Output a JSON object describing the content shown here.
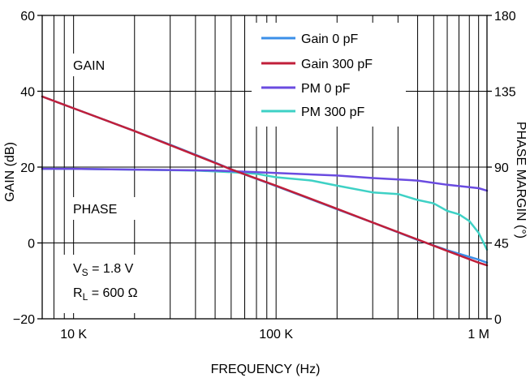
{
  "chart_data": {
    "type": "line",
    "x_scale": "log",
    "xlim": [
      7000,
      1100000
    ],
    "ylim_left": [
      -20,
      60
    ],
    "ylim_right": [
      0,
      180
    ],
    "xlabel": "FREQUENCY (Hz)",
    "ylabel_left": "GAIN (dB)",
    "ylabel_right": "PHASE MARGIN (°)",
    "x_ticks": [
      {
        "value": 10000,
        "label": "10 K"
      },
      {
        "value": 100000,
        "label": "100 K"
      },
      {
        "value": 1000000,
        "label": "1 M"
      }
    ],
    "y_ticks_left": [
      -20,
      0,
      20,
      40,
      60
    ],
    "y_ticks_left_labels": [
      "−20",
      "0",
      "20",
      "40",
      "60"
    ],
    "y_ticks_right": [
      0,
      45,
      90,
      135,
      180
    ],
    "grid": "vertical log minor lines, horizontal at left ticks",
    "legend_position": "top-right",
    "annotations": {
      "gain": "GAIN",
      "phase": "PHASE",
      "vs_main": "V",
      "vs_sub": "S",
      "vs_rest": " = 1.8 V",
      "rl_main": "R",
      "rl_sub": "L",
      "rl_rest": " = 600 Ω"
    },
    "series": [
      {
        "name": "Gain 0 pF",
        "axis": "left",
        "color": "#3b8fe8",
        "x": [
          7000,
          10000,
          20000,
          30000,
          50000,
          60000,
          100000,
          200000,
          300000,
          500000,
          700000,
          1000000,
          1100000
        ],
        "y": [
          38.6,
          35.5,
          29.5,
          25.9,
          21.2,
          19.4,
          15.0,
          8.9,
          5.4,
          0.8,
          -1.9,
          -4.4,
          -5.2
        ]
      },
      {
        "name": "Gain 300 pF",
        "axis": "left",
        "color": "#c01f3a",
        "x": [
          7000,
          10000,
          20000,
          30000,
          50000,
          60000,
          100000,
          200000,
          300000,
          500000,
          700000,
          1000000,
          1100000
        ],
        "y": [
          38.6,
          35.5,
          29.5,
          25.8,
          21.1,
          19.4,
          15.1,
          9.0,
          5.4,
          0.9,
          -2.1,
          -5.2,
          -5.9
        ]
      },
      {
        "name": "PM 0 pF",
        "axis": "right",
        "color": "#6a4be0",
        "x": [
          7000,
          10000,
          20000,
          50000,
          100000,
          200000,
          300000,
          500000,
          700000,
          1000000,
          1100000
        ],
        "y": [
          89,
          89,
          88.5,
          88,
          86.5,
          85,
          83.5,
          82,
          79.5,
          77.5,
          76
        ]
      },
      {
        "name": "PM 300 pF",
        "axis": "right",
        "color": "#3ed1c5",
        "x": [
          7000,
          10000,
          20000,
          40000,
          60000,
          80000,
          100000,
          150000,
          200000,
          300000,
          400000,
          500000,
          600000,
          700000,
          800000,
          900000,
          1000000,
          1100000
        ],
        "y": [
          89,
          89,
          88.5,
          88,
          87,
          86,
          84,
          82,
          79,
          75,
          74,
          70.5,
          68.5,
          64,
          62,
          58,
          51,
          41
        ]
      }
    ]
  }
}
